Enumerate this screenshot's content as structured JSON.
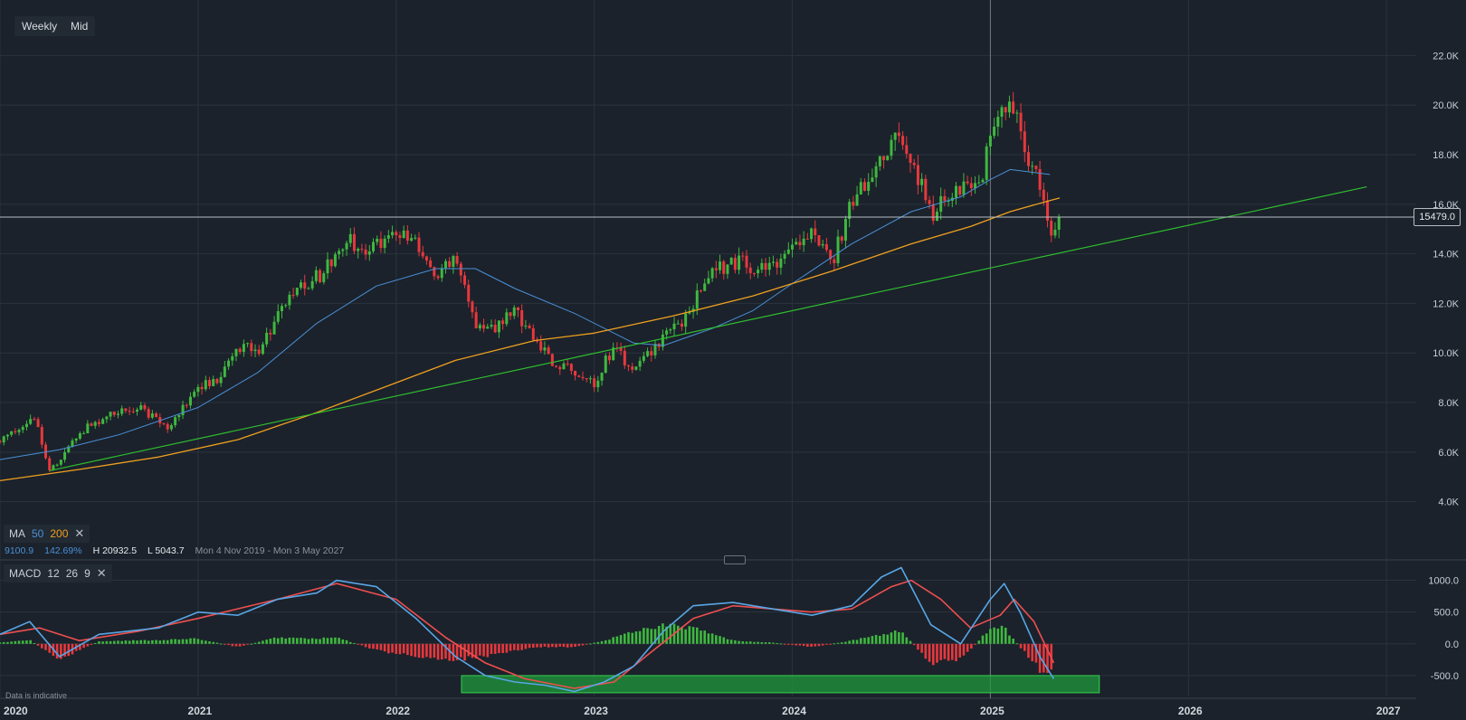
{
  "toolbar": {
    "interval_label": "Weekly",
    "price_type_label": "Mid"
  },
  "ma_indicator": {
    "label": "MA",
    "period_fast": "50",
    "period_slow": "200",
    "close_glyph": "✕"
  },
  "macd_indicator": {
    "label": "MACD",
    "fast": "12",
    "slow": "26",
    "signal": "9",
    "close_glyph": "✕"
  },
  "info_bar": {
    "ma_value": "9100.9",
    "change_pct": "142.69%",
    "high": "H 20932.5",
    "low": "L 5043.7",
    "range": "Mon 4 Nov 2019 - Mon 3 May 2027"
  },
  "current_price_label": "15479.0",
  "footer_note": "Data is indicative",
  "colors": {
    "background": "#1b222b",
    "grid": "#2a323c",
    "up": "#3fb83f",
    "down": "#e8383d",
    "ma50": "#4a90d9",
    "ma200": "#f0a020",
    "trendline": "#2fbf2f",
    "macd_line": "#58a6e6",
    "signal_line": "#ef4f4f",
    "support_zone": "#1f9a3c"
  },
  "chart_data": [
    {
      "type": "candlestick",
      "interval": "weekly",
      "x_ticks": [
        "2020",
        "2021",
        "2022",
        "2023",
        "2024",
        "2025",
        "2026",
        "2027"
      ],
      "x_range": [
        2020.0,
        2027.15
      ],
      "y_ticks": [
        "4.0K",
        "6.0K",
        "8.0K",
        "10.0K",
        "12.0K",
        "14.0K",
        "16.0K",
        "18.0K",
        "20.0K",
        "22.0K"
      ],
      "ylim": [
        2200,
        23800
      ],
      "current_price": 15479.0,
      "high": 20932.5,
      "low": 5043.7,
      "price_path": [
        [
          2020.0,
          6450
        ],
        [
          2020.1,
          6900
        ],
        [
          2020.17,
          7600
        ],
        [
          2020.25,
          5200
        ],
        [
          2020.3,
          5600
        ],
        [
          2020.4,
          6800
        ],
        [
          2020.55,
          7500
        ],
        [
          2020.7,
          7900
        ],
        [
          2020.85,
          6900
        ],
        [
          2021.0,
          8700
        ],
        [
          2021.1,
          8800
        ],
        [
          2021.2,
          10200
        ],
        [
          2021.3,
          10100
        ],
        [
          2021.45,
          12100
        ],
        [
          2021.65,
          13400
        ],
        [
          2021.75,
          14600
        ],
        [
          2021.85,
          14200
        ],
        [
          2022.0,
          14800
        ],
        [
          2022.1,
          14500
        ],
        [
          2022.2,
          13000
        ],
        [
          2022.3,
          14100
        ],
        [
          2022.4,
          11200
        ],
        [
          2022.5,
          11000
        ],
        [
          2022.6,
          11700
        ],
        [
          2022.7,
          10700
        ],
        [
          2022.8,
          9400
        ],
        [
          2022.9,
          9300
        ],
        [
          2023.0,
          8800
        ],
        [
          2023.1,
          10300
        ],
        [
          2023.2,
          9200
        ],
        [
          2023.35,
          10700
        ],
        [
          2023.45,
          11300
        ],
        [
          2023.6,
          13300
        ],
        [
          2023.75,
          13700
        ],
        [
          2023.85,
          13300
        ],
        [
          2024.0,
          14200
        ],
        [
          2024.1,
          14800
        ],
        [
          2024.2,
          13600
        ],
        [
          2024.3,
          16200
        ],
        [
          2024.4,
          17200
        ],
        [
          2024.5,
          18300
        ],
        [
          2024.55,
          19000
        ],
        [
          2024.6,
          18000
        ],
        [
          2024.7,
          15600
        ],
        [
          2024.8,
          16300
        ],
        [
          2024.95,
          17000
        ],
        [
          2025.0,
          18700
        ],
        [
          2025.05,
          19600
        ],
        [
          2025.1,
          20400
        ],
        [
          2025.18,
          18200
        ],
        [
          2025.25,
          16800
        ],
        [
          2025.3,
          14500
        ],
        [
          2025.35,
          15479
        ]
      ],
      "series": [
        {
          "name": "MA 50",
          "values": [
            [
              2020.0,
              5700
            ],
            [
              2020.3,
              6100
            ],
            [
              2020.6,
              6700
            ],
            [
              2021.0,
              7800
            ],
            [
              2021.3,
              9200
            ],
            [
              2021.6,
              11200
            ],
            [
              2021.9,
              12700
            ],
            [
              2022.2,
              13400
            ],
            [
              2022.4,
              13400
            ],
            [
              2022.6,
              12600
            ],
            [
              2022.9,
              11600
            ],
            [
              2023.2,
              10400
            ],
            [
              2023.35,
              10300
            ],
            [
              2023.6,
              11000
            ],
            [
              2023.8,
              11700
            ],
            [
              2024.0,
              12800
            ],
            [
              2024.3,
              14400
            ],
            [
              2024.6,
              15700
            ],
            [
              2024.85,
              16300
            ],
            [
              2025.0,
              17000
            ],
            [
              2025.1,
              17400
            ],
            [
              2025.3,
              17200
            ]
          ]
        },
        {
          "name": "MA 200",
          "values": [
            [
              2020.0,
              4850
            ],
            [
              2020.4,
              5300
            ],
            [
              2020.8,
              5800
            ],
            [
              2021.2,
              6500
            ],
            [
              2021.6,
              7600
            ],
            [
              2022.0,
              8800
            ],
            [
              2022.3,
              9700
            ],
            [
              2022.7,
              10500
            ],
            [
              2023.0,
              10800
            ],
            [
              2023.4,
              11500
            ],
            [
              2023.8,
              12300
            ],
            [
              2024.2,
              13300
            ],
            [
              2024.6,
              14400
            ],
            [
              2024.9,
              15100
            ],
            [
              2025.1,
              15700
            ],
            [
              2025.3,
              16150
            ],
            [
              2025.35,
              16250
            ]
          ]
        }
      ],
      "annotations": [
        {
          "type": "trendline",
          "points": [
            [
              2020.25,
              5250
            ],
            [
              2026.9,
              16700
            ]
          ]
        },
        {
          "type": "horizontal_line",
          "y": 15479.0
        }
      ]
    },
    {
      "type": "bar",
      "indicator": "MACD",
      "y_ticks": [
        "-500.0",
        "0.0",
        "500.0",
        "1000.0"
      ],
      "ylim": [
        -800,
        1250
      ],
      "series": [
        {
          "name": "MACD",
          "values": [
            [
              2020.0,
              150
            ],
            [
              2020.15,
              350
            ],
            [
              2020.3,
              -200
            ],
            [
              2020.5,
              150
            ],
            [
              2020.8,
              250
            ],
            [
              2021.0,
              500
            ],
            [
              2021.2,
              450
            ],
            [
              2021.4,
              700
            ],
            [
              2021.6,
              800
            ],
            [
              2021.7,
              1000
            ],
            [
              2021.9,
              900
            ],
            [
              2022.1,
              400
            ],
            [
              2022.3,
              -200
            ],
            [
              2022.45,
              -500
            ],
            [
              2022.6,
              -600
            ],
            [
              2022.75,
              -650
            ],
            [
              2022.9,
              -750
            ],
            [
              2023.05,
              -600
            ],
            [
              2023.2,
              -350
            ],
            [
              2023.35,
              200
            ],
            [
              2023.5,
              600
            ],
            [
              2023.7,
              650
            ],
            [
              2023.9,
              550
            ],
            [
              2024.1,
              450
            ],
            [
              2024.3,
              600
            ],
            [
              2024.45,
              1050
            ],
            [
              2024.55,
              1200
            ],
            [
              2024.7,
              300
            ],
            [
              2024.85,
              0
            ],
            [
              2025.0,
              700
            ],
            [
              2025.07,
              950
            ],
            [
              2025.15,
              500
            ],
            [
              2025.25,
              -200
            ],
            [
              2025.32,
              -550
            ]
          ]
        },
        {
          "name": "Signal",
          "values": [
            [
              2020.0,
              150
            ],
            [
              2020.2,
              250
            ],
            [
              2020.4,
              50
            ],
            [
              2020.7,
              200
            ],
            [
              2021.0,
              400
            ],
            [
              2021.4,
              700
            ],
            [
              2021.7,
              950
            ],
            [
              2022.0,
              700
            ],
            [
              2022.25,
              100
            ],
            [
              2022.45,
              -300
            ],
            [
              2022.65,
              -550
            ],
            [
              2022.9,
              -700
            ],
            [
              2023.1,
              -600
            ],
            [
              2023.3,
              -100
            ],
            [
              2023.5,
              400
            ],
            [
              2023.7,
              600
            ],
            [
              2023.9,
              550
            ],
            [
              2024.1,
              500
            ],
            [
              2024.3,
              550
            ],
            [
              2024.5,
              900
            ],
            [
              2024.6,
              1000
            ],
            [
              2024.75,
              700
            ],
            [
              2024.9,
              250
            ],
            [
              2025.05,
              450
            ],
            [
              2025.12,
              700
            ],
            [
              2025.22,
              350
            ],
            [
              2025.32,
              -300
            ]
          ]
        }
      ],
      "histogram": [
        [
          2020.0,
          20
        ],
        [
          2020.15,
          60
        ],
        [
          2020.3,
          -250
        ],
        [
          2020.5,
          40
        ],
        [
          2020.8,
          60
        ],
        [
          2021.0,
          80
        ],
        [
          2021.2,
          -50
        ],
        [
          2021.4,
          100
        ],
        [
          2021.6,
          80
        ],
        [
          2021.7,
          100
        ],
        [
          2021.9,
          -100
        ],
        [
          2022.1,
          -200
        ],
        [
          2022.3,
          -250
        ],
        [
          2022.45,
          -200
        ],
        [
          2022.6,
          -100
        ],
        [
          2022.75,
          -50
        ],
        [
          2022.9,
          -50
        ],
        [
          2023.05,
          50
        ],
        [
          2023.2,
          200
        ],
        [
          2023.35,
          300
        ],
        [
          2023.5,
          250
        ],
        [
          2023.7,
          50
        ],
        [
          2023.9,
          20
        ],
        [
          2024.1,
          -50
        ],
        [
          2024.3,
          50
        ],
        [
          2024.45,
          150
        ],
        [
          2024.55,
          200
        ],
        [
          2024.7,
          -300
        ],
        [
          2024.85,
          -250
        ],
        [
          2025.0,
          250
        ],
        [
          2025.07,
          250
        ],
        [
          2025.15,
          -50
        ],
        [
          2025.25,
          -400
        ],
        [
          2025.32,
          -450
        ]
      ],
      "annotations": [
        {
          "type": "zone",
          "x_range": [
            2022.33,
            2025.55
          ],
          "y_range": [
            -770,
            -500
          ]
        }
      ]
    }
  ]
}
